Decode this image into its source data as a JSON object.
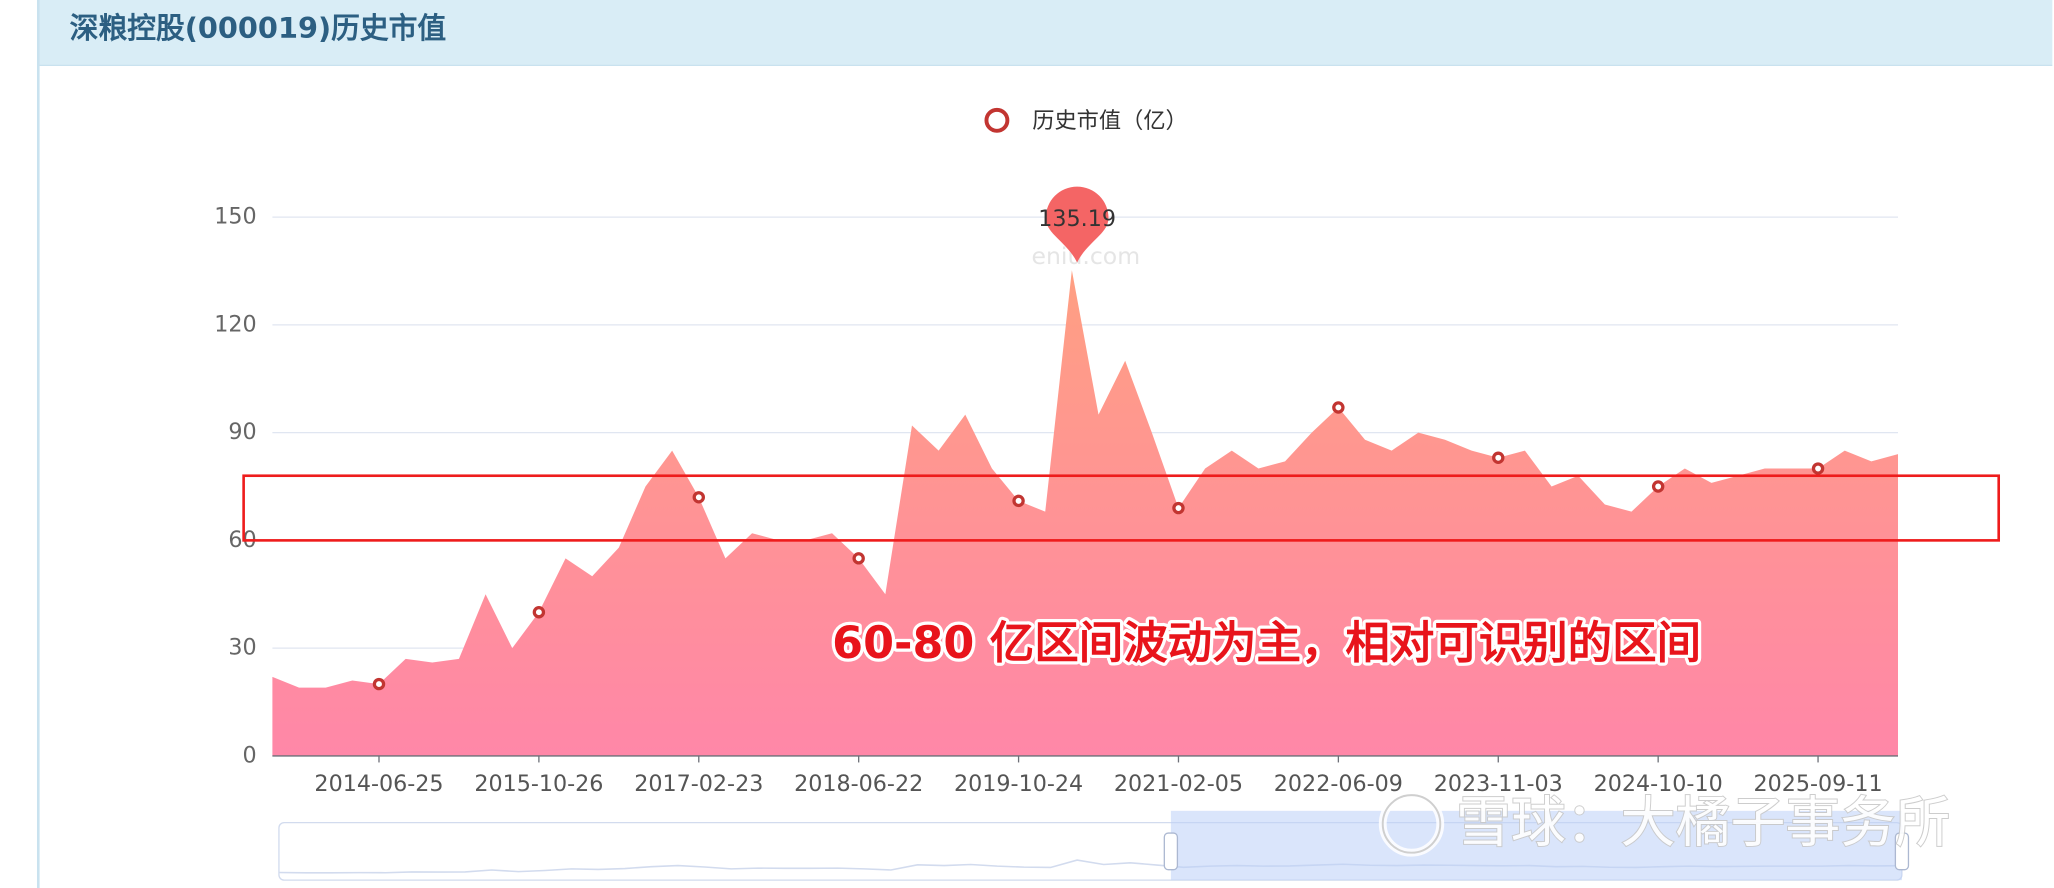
{
  "chart_data": {
    "type": "area",
    "title": "深粮控股(000019)历史市值",
    "series": [
      {
        "name": "历史市值（亿）",
        "color": "#c23531",
        "values": [
          22,
          19,
          19,
          21,
          20,
          27,
          26,
          27,
          45,
          30,
          40,
          55,
          50,
          58,
          75,
          85,
          72,
          55,
          62,
          60,
          60,
          62,
          55,
          45,
          92,
          85,
          95,
          80,
          71,
          68,
          135.19,
          95,
          110,
          90,
          69,
          80,
          85,
          80,
          82,
          90,
          97,
          88,
          85,
          90,
          88,
          85,
          83,
          85,
          75,
          78,
          70,
          68,
          75,
          80,
          76,
          78,
          80,
          80,
          80,
          85,
          82,
          84
        ]
      }
    ],
    "categories": [
      null,
      null,
      null,
      null,
      "2014-06-25",
      null,
      null,
      null,
      null,
      null,
      "2015-10-26",
      null,
      null,
      null,
      null,
      null,
      "2017-02-23",
      null,
      null,
      null,
      null,
      null,
      "2018-06-22",
      null,
      null,
      null,
      null,
      null,
      "2019-10-24",
      null,
      null,
      null,
      null,
      null,
      "2021-02-05",
      null,
      null,
      null,
      null,
      null,
      "2022-06-09",
      null,
      null,
      null,
      null,
      null,
      "2023-11-03",
      null,
      null,
      null,
      null,
      null,
      "2024-10-10",
      null,
      null,
      null,
      null,
      null,
      "2025-09-11",
      null,
      null,
      null
    ],
    "area_colors": [
      "#ffa27e",
      "#ff87a8"
    ],
    "ylim": [
      0,
      150
    ],
    "yticks": [
      0,
      30,
      60,
      90,
      120,
      150
    ],
    "grid": true,
    "legend": "top",
    "peak_index": 30,
    "watermark": "eniu.com",
    "annotation": {
      "text": "60-80 亿区间波动为主，相对可识别的区间",
      "ylim": [
        60,
        78
      ]
    },
    "credit": "雪球：大橘子事务所"
  }
}
